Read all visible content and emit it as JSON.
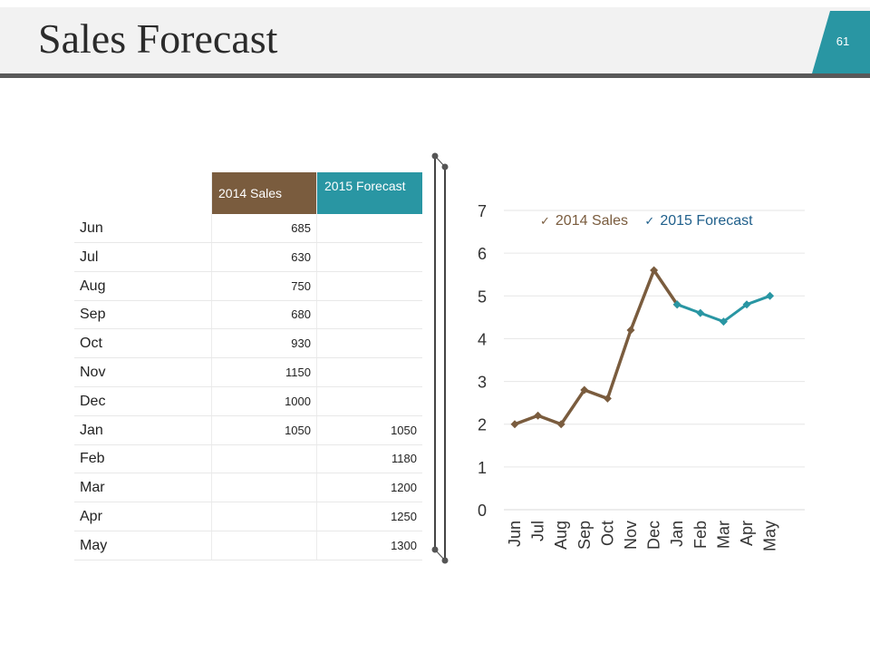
{
  "slide": {
    "title": "Sales Forecast",
    "page_number": "61",
    "colors": {
      "brown": "#7a5c3e",
      "teal": "#2996a3",
      "header_bg": "#f2f2f2",
      "header_line": "#595959"
    }
  },
  "table": {
    "headers": [
      "2014 Sales",
      "2015 Forecast"
    ],
    "rows": [
      {
        "month": "Jun",
        "sales_2014": "685",
        "forecast_2015": ""
      },
      {
        "month": "Jul",
        "sales_2014": "630",
        "forecast_2015": ""
      },
      {
        "month": "Aug",
        "sales_2014": "750",
        "forecast_2015": ""
      },
      {
        "month": "Sep",
        "sales_2014": "680",
        "forecast_2015": ""
      },
      {
        "month": "Oct",
        "sales_2014": "930",
        "forecast_2015": ""
      },
      {
        "month": "Nov",
        "sales_2014": "1150",
        "forecast_2015": ""
      },
      {
        "month": "Dec",
        "sales_2014": "1000",
        "forecast_2015": ""
      },
      {
        "month": "Jan",
        "sales_2014": "1050",
        "forecast_2015": "1050"
      },
      {
        "month": "Feb",
        "sales_2014": "",
        "forecast_2015": "1180"
      },
      {
        "month": "Mar",
        "sales_2014": "",
        "forecast_2015": "1200"
      },
      {
        "month": "Apr",
        "sales_2014": "",
        "forecast_2015": "1250"
      },
      {
        "month": "May",
        "sales_2014": "",
        "forecast_2015": "1300"
      }
    ]
  },
  "chart_data": {
    "type": "line",
    "categories": [
      "Jun",
      "Jul",
      "Aug",
      "Sep",
      "Oct",
      "Nov",
      "Dec",
      "Jan",
      "Feb",
      "Mar",
      "Apr",
      "May"
    ],
    "series": [
      {
        "name": "2014 Sales",
        "color": "#7a5c3e",
        "values": [
          2.0,
          2.2,
          2.0,
          2.8,
          2.6,
          4.2,
          5.6,
          4.8,
          null,
          null,
          null,
          null
        ]
      },
      {
        "name": "2015 Forecast",
        "color": "#2996a3",
        "values": [
          null,
          null,
          null,
          null,
          null,
          null,
          null,
          4.8,
          4.6,
          4.4,
          4.8,
          5.0
        ]
      }
    ],
    "yticks": [
      "0",
      "1",
      "2",
      "3",
      "4",
      "5",
      "6",
      "7"
    ],
    "ylim": [
      0,
      7
    ],
    "grid": true,
    "legend_position": "top",
    "title": "",
    "xlabel": "",
    "ylabel": ""
  }
}
